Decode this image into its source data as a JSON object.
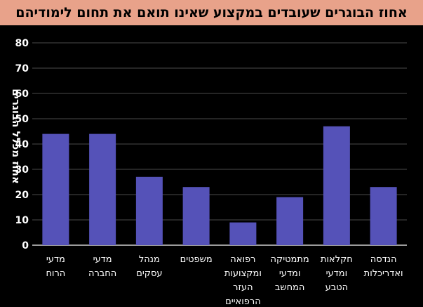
{
  "chart_data": {
    "type": "bar",
    "title": "אחוז הבוגרים שעובדים במקצוע שאינו תואם את תחום לימודיהם",
    "ylabel": "אחוז מכלל הבוגרים",
    "xlabel": "",
    "ylim": [
      0,
      80
    ],
    "yticks": [
      0,
      10,
      20,
      30,
      40,
      50,
      60,
      70,
      80
    ],
    "grid": true,
    "categories": [
      [
        "מדעי",
        "הרוח"
      ],
      [
        "מדעי",
        "החברה"
      ],
      [
        "מנהל",
        "עסקים"
      ],
      [
        "משפטים"
      ],
      [
        "רפואה",
        "ומקצועות",
        "העזר",
        "הרפואיים"
      ],
      [
        "מתמטיקה",
        "ומדעי",
        "המחשב"
      ],
      [
        "חקלאות",
        "ומדעי",
        "הטבע"
      ],
      [
        "הנדסה",
        "ואדריכלות"
      ]
    ],
    "values": [
      44,
      44,
      27,
      23,
      9,
      19,
      47,
      23
    ],
    "bar_color": "#5552b8",
    "title_bg": "#e8a28a"
  }
}
